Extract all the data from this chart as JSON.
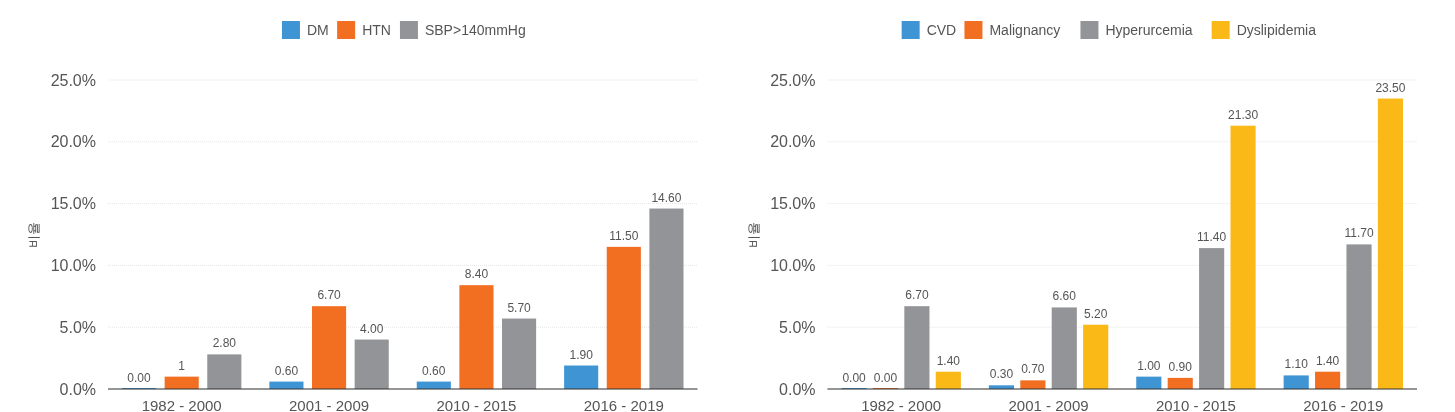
{
  "chart_data": [
    {
      "type": "bar",
      "ylabel": "비율",
      "categories": [
        "1982 - 2000",
        "2001 - 2009",
        "2010 - 2015",
        "2016 - 2019"
      ],
      "series": [
        {
          "name": "DM",
          "color": "#3f94d4",
          "values": [
            0,
            0.6,
            0.6,
            1.9
          ],
          "value_labels": [
            "0.00",
            "0.60",
            "0.60",
            "1.90"
          ]
        },
        {
          "name": "HTN",
          "color": "#f26f22",
          "values": [
            1,
            6.7,
            8.4,
            11.5
          ],
          "value_labels": [
            "1",
            "6.70",
            "8.40",
            "11.50"
          ]
        },
        {
          "name": "SBP>140mmHg",
          "color": "#939497",
          "values": [
            2.8,
            4,
            5.7,
            14.6
          ],
          "value_labels": [
            "2.80",
            "4.00",
            "5.70",
            "14.60"
          ]
        }
      ],
      "ylim": [
        0,
        25
      ],
      "yticks": [
        {
          "value": 0,
          "label": "0.0%"
        },
        {
          "value": 5,
          "label": "5.0%"
        },
        {
          "value": 10,
          "label": "10.0%"
        },
        {
          "value": 15,
          "label": "15.0%"
        },
        {
          "value": 20,
          "label": "20.0%"
        },
        {
          "value": 25,
          "label": "25.0%"
        }
      ],
      "grid": "y",
      "legend": "top"
    },
    {
      "type": "bar",
      "ylabel": "비율",
      "categories": [
        "1982 - 2000",
        "2001 - 2009",
        "2010 - 2015",
        "2016 - 2019"
      ],
      "series": [
        {
          "name": "CVD",
          "color": "#3f94d4",
          "values": [
            0,
            0.3,
            1,
            1.1
          ],
          "value_labels": [
            "0.00",
            "0.30",
            "1.00",
            "1.10"
          ]
        },
        {
          "name": "Malignancy",
          "color": "#f26f22",
          "values": [
            0,
            0.7,
            0.9,
            1.4
          ],
          "value_labels": [
            "0.00",
            "0.70",
            "0.90",
            "1.40"
          ]
        },
        {
          "name": "Hyperurcemia",
          "color": "#939497",
          "values": [
            6.7,
            6.6,
            11.4,
            11.7
          ],
          "value_labels": [
            "6.70",
            "6.60",
            "11.40",
            "11.70"
          ]
        },
        {
          "name": "Dyslipidemia",
          "color": "#fbb917",
          "values": [
            1.4,
            5.2,
            21.3,
            23.5
          ],
          "value_labels": [
            "1.40",
            "5.20",
            "21.30",
            "23.50"
          ]
        }
      ],
      "ylim": [
        0,
        25
      ],
      "yticks": [
        {
          "value": 0,
          "label": "0.0%"
        },
        {
          "value": 5,
          "label": "5.0%"
        },
        {
          "value": 10,
          "label": "10.0%"
        },
        {
          "value": 15,
          "label": "15.0%"
        },
        {
          "value": 20,
          "label": "20.0%"
        },
        {
          "value": 25,
          "label": "25.0%"
        }
      ],
      "grid": "y",
      "legend": "top"
    }
  ]
}
